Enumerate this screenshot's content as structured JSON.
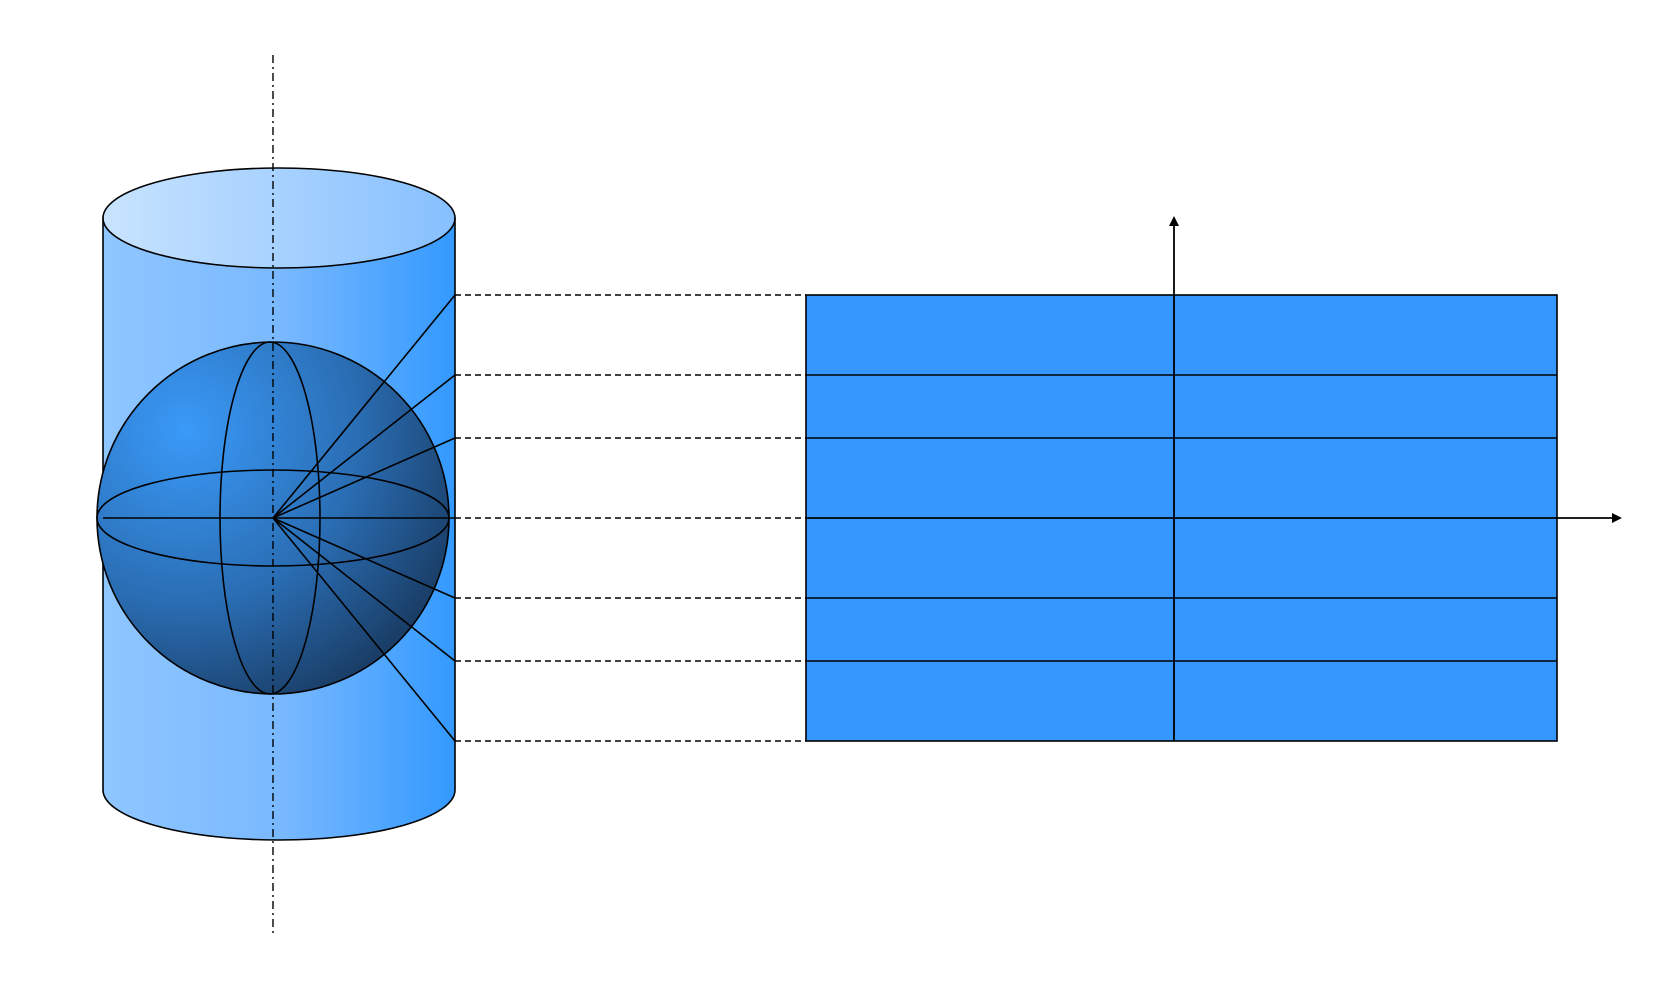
{
  "diagram": {
    "type": "central-cylindrical-projection",
    "colors": {
      "background": "#ffffff",
      "outline": "#000000",
      "cylinder_light": "#c4e0ff",
      "cylinder_mid": "#8cc3ff",
      "cylinder_dark": "#3399ff",
      "sphere_light": "#3a96f5",
      "sphere_dark": "#1c4776",
      "map_fill": "#3697ff"
    },
    "latitude_lines": 7,
    "map_rows": 6
  }
}
